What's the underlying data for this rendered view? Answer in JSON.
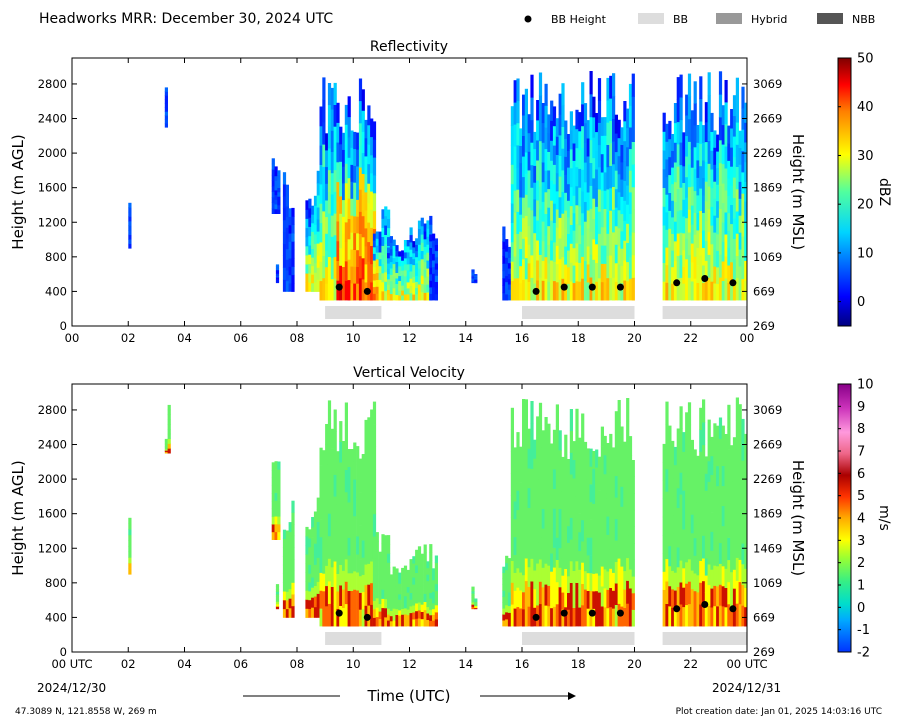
{
  "header": {
    "title": "Headworks MRR:  December 30, 2024 UTC",
    "legend": [
      {
        "label": "BB Height",
        "kind": "dot",
        "color": "#000000"
      },
      {
        "label": "BB",
        "kind": "patch",
        "color": "#dddddd"
      },
      {
        "label": "Hybrid",
        "kind": "patch",
        "color": "#999999"
      },
      {
        "label": "NBB",
        "kind": "patch",
        "color": "#555555"
      }
    ]
  },
  "footer": {
    "location": "47.3089 N, 121.8558 W, 269 m",
    "creation": "Plot creation date: Jan 01, 2025 14:03:16 UTC",
    "xlabel": "Time (UTC)",
    "date_start": "2024/12/30",
    "date_end": "2024/12/31"
  },
  "chart_data": [
    {
      "type": "heatmap",
      "title": "Reflectivity",
      "xlabel": "Time (UTC)",
      "ylabel": "Height (m AGL)",
      "ylabel_right": "Height (m MSL)",
      "xlim": [
        0,
        24
      ],
      "ylim": [
        0,
        3100
      ],
      "x_ticks": [
        "00",
        "02",
        "04",
        "06",
        "08",
        "10",
        "12",
        "14",
        "16",
        "18",
        "20",
        "22",
        "00"
      ],
      "y_ticks": [
        0,
        400,
        800,
        1200,
        1600,
        2000,
        2400,
        2800
      ],
      "y_ticks_right": [
        269,
        669,
        1069,
        1469,
        1869,
        2269,
        2669,
        3069
      ],
      "colorbar": {
        "label": "dBZ",
        "min": -5,
        "max": 50,
        "ticks": [
          0,
          10,
          20,
          30,
          40,
          50
        ],
        "colormap": "jet"
      },
      "bb_height_points": [
        {
          "x": 9.5,
          "y": 450
        },
        {
          "x": 10.5,
          "y": 400
        },
        {
          "x": 16.5,
          "y": 400
        },
        {
          "x": 17.5,
          "y": 450
        },
        {
          "x": 18.5,
          "y": 450
        },
        {
          "x": 19.5,
          "y": 450
        },
        {
          "x": 21.5,
          "y": 500
        },
        {
          "x": 22.5,
          "y": 550
        },
        {
          "x": 23.5,
          "y": 500
        }
      ],
      "bb_segments": [
        {
          "start": 9.0,
          "end": 11.0,
          "type": "BB"
        },
        {
          "start": 16.0,
          "end": 20.0,
          "type": "BB"
        },
        {
          "start": 21.0,
          "end": 24.0,
          "type": "BB"
        }
      ]
    },
    {
      "type": "heatmap",
      "title": "Vertical Velocity",
      "xlabel": "Time (UTC)",
      "ylabel": "Height (m AGL)",
      "ylabel_right": "Height (m MSL)",
      "xlim": [
        0,
        24
      ],
      "ylim": [
        0,
        3100
      ],
      "x_ticks": [
        "00 UTC",
        "02",
        "04",
        "06",
        "08",
        "10",
        "12",
        "14",
        "16",
        "18",
        "20",
        "22",
        "00 UTC"
      ],
      "y_ticks": [
        0,
        400,
        800,
        1200,
        1600,
        2000,
        2400,
        2800
      ],
      "y_ticks_right": [
        269,
        669,
        1069,
        1469,
        1869,
        2269,
        2669,
        3069
      ],
      "colorbar": {
        "label": "m/s",
        "min": -2,
        "max": 10,
        "ticks": [
          -2,
          -1,
          0,
          1,
          2,
          3,
          4,
          5,
          6,
          7,
          8,
          9,
          10
        ],
        "colormap": "velocity"
      },
      "bb_height_points": [
        {
          "x": 9.5,
          "y": 450
        },
        {
          "x": 10.5,
          "y": 400
        },
        {
          "x": 16.5,
          "y": 400
        },
        {
          "x": 17.5,
          "y": 450
        },
        {
          "x": 18.5,
          "y": 450
        },
        {
          "x": 19.5,
          "y": 450
        },
        {
          "x": 21.5,
          "y": 500
        },
        {
          "x": 22.5,
          "y": 550
        },
        {
          "x": 23.5,
          "y": 500
        }
      ],
      "bb_segments": [
        {
          "start": 9.0,
          "end": 11.0,
          "type": "BB"
        },
        {
          "start": 16.0,
          "end": 20.0,
          "type": "BB"
        },
        {
          "start": 21.0,
          "end": 24.0,
          "type": "BB"
        }
      ]
    }
  ]
}
